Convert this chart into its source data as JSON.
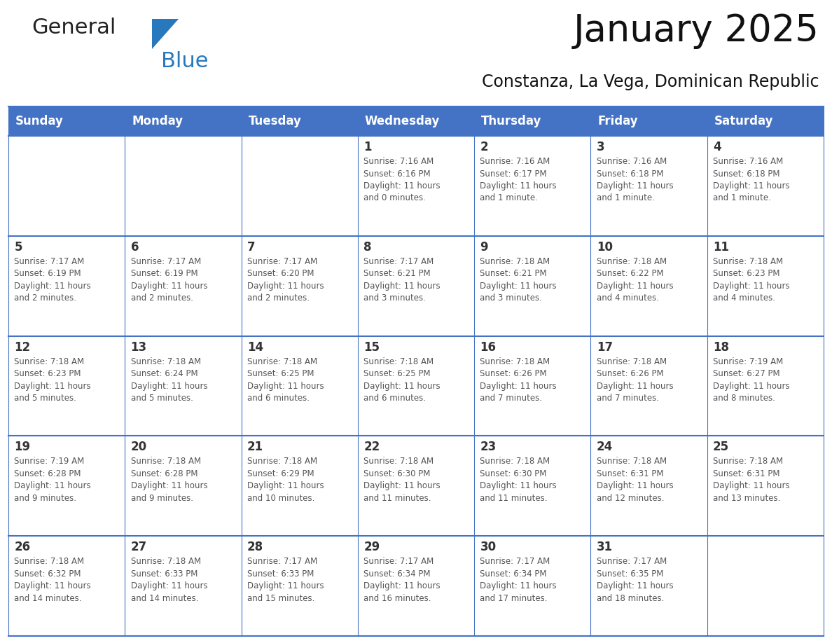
{
  "title": "January 2025",
  "subtitle": "Constanza, La Vega, Dominican Republic",
  "days_of_week": [
    "Sunday",
    "Monday",
    "Tuesday",
    "Wednesday",
    "Thursday",
    "Friday",
    "Saturday"
  ],
  "header_bg": "#4472C4",
  "header_text": "#FFFFFF",
  "cell_bg": "#FFFFFF",
  "border_color": "#4472C4",
  "day_number_color": "#333333",
  "text_color": "#555555",
  "title_color": "#111111",
  "subtitle_color": "#111111",
  "logo_general_color": "#222222",
  "logo_blue_color": "#2878BE",
  "background_color": "#FFFFFF",
  "calendar_data": [
    [
      {
        "day": null,
        "info": ""
      },
      {
        "day": null,
        "info": ""
      },
      {
        "day": null,
        "info": ""
      },
      {
        "day": 1,
        "info": "Sunrise: 7:16 AM\nSunset: 6:16 PM\nDaylight: 11 hours\nand 0 minutes."
      },
      {
        "day": 2,
        "info": "Sunrise: 7:16 AM\nSunset: 6:17 PM\nDaylight: 11 hours\nand 1 minute."
      },
      {
        "day": 3,
        "info": "Sunrise: 7:16 AM\nSunset: 6:18 PM\nDaylight: 11 hours\nand 1 minute."
      },
      {
        "day": 4,
        "info": "Sunrise: 7:16 AM\nSunset: 6:18 PM\nDaylight: 11 hours\nand 1 minute."
      }
    ],
    [
      {
        "day": 5,
        "info": "Sunrise: 7:17 AM\nSunset: 6:19 PM\nDaylight: 11 hours\nand 2 minutes."
      },
      {
        "day": 6,
        "info": "Sunrise: 7:17 AM\nSunset: 6:19 PM\nDaylight: 11 hours\nand 2 minutes."
      },
      {
        "day": 7,
        "info": "Sunrise: 7:17 AM\nSunset: 6:20 PM\nDaylight: 11 hours\nand 2 minutes."
      },
      {
        "day": 8,
        "info": "Sunrise: 7:17 AM\nSunset: 6:21 PM\nDaylight: 11 hours\nand 3 minutes."
      },
      {
        "day": 9,
        "info": "Sunrise: 7:18 AM\nSunset: 6:21 PM\nDaylight: 11 hours\nand 3 minutes."
      },
      {
        "day": 10,
        "info": "Sunrise: 7:18 AM\nSunset: 6:22 PM\nDaylight: 11 hours\nand 4 minutes."
      },
      {
        "day": 11,
        "info": "Sunrise: 7:18 AM\nSunset: 6:23 PM\nDaylight: 11 hours\nand 4 minutes."
      }
    ],
    [
      {
        "day": 12,
        "info": "Sunrise: 7:18 AM\nSunset: 6:23 PM\nDaylight: 11 hours\nand 5 minutes."
      },
      {
        "day": 13,
        "info": "Sunrise: 7:18 AM\nSunset: 6:24 PM\nDaylight: 11 hours\nand 5 minutes."
      },
      {
        "day": 14,
        "info": "Sunrise: 7:18 AM\nSunset: 6:25 PM\nDaylight: 11 hours\nand 6 minutes."
      },
      {
        "day": 15,
        "info": "Sunrise: 7:18 AM\nSunset: 6:25 PM\nDaylight: 11 hours\nand 6 minutes."
      },
      {
        "day": 16,
        "info": "Sunrise: 7:18 AM\nSunset: 6:26 PM\nDaylight: 11 hours\nand 7 minutes."
      },
      {
        "day": 17,
        "info": "Sunrise: 7:18 AM\nSunset: 6:26 PM\nDaylight: 11 hours\nand 7 minutes."
      },
      {
        "day": 18,
        "info": "Sunrise: 7:19 AM\nSunset: 6:27 PM\nDaylight: 11 hours\nand 8 minutes."
      }
    ],
    [
      {
        "day": 19,
        "info": "Sunrise: 7:19 AM\nSunset: 6:28 PM\nDaylight: 11 hours\nand 9 minutes."
      },
      {
        "day": 20,
        "info": "Sunrise: 7:18 AM\nSunset: 6:28 PM\nDaylight: 11 hours\nand 9 minutes."
      },
      {
        "day": 21,
        "info": "Sunrise: 7:18 AM\nSunset: 6:29 PM\nDaylight: 11 hours\nand 10 minutes."
      },
      {
        "day": 22,
        "info": "Sunrise: 7:18 AM\nSunset: 6:30 PM\nDaylight: 11 hours\nand 11 minutes."
      },
      {
        "day": 23,
        "info": "Sunrise: 7:18 AM\nSunset: 6:30 PM\nDaylight: 11 hours\nand 11 minutes."
      },
      {
        "day": 24,
        "info": "Sunrise: 7:18 AM\nSunset: 6:31 PM\nDaylight: 11 hours\nand 12 minutes."
      },
      {
        "day": 25,
        "info": "Sunrise: 7:18 AM\nSunset: 6:31 PM\nDaylight: 11 hours\nand 13 minutes."
      }
    ],
    [
      {
        "day": 26,
        "info": "Sunrise: 7:18 AM\nSunset: 6:32 PM\nDaylight: 11 hours\nand 14 minutes."
      },
      {
        "day": 27,
        "info": "Sunrise: 7:18 AM\nSunset: 6:33 PM\nDaylight: 11 hours\nand 14 minutes."
      },
      {
        "day": 28,
        "info": "Sunrise: 7:17 AM\nSunset: 6:33 PM\nDaylight: 11 hours\nand 15 minutes."
      },
      {
        "day": 29,
        "info": "Sunrise: 7:17 AM\nSunset: 6:34 PM\nDaylight: 11 hours\nand 16 minutes."
      },
      {
        "day": 30,
        "info": "Sunrise: 7:17 AM\nSunset: 6:34 PM\nDaylight: 11 hours\nand 17 minutes."
      },
      {
        "day": 31,
        "info": "Sunrise: 7:17 AM\nSunset: 6:35 PM\nDaylight: 11 hours\nand 18 minutes."
      },
      {
        "day": null,
        "info": ""
      }
    ]
  ],
  "logo_general_fontsize": 22,
  "logo_blue_fontsize": 22,
  "title_fontsize": 38,
  "subtitle_fontsize": 17,
  "header_fontsize": 12,
  "day_num_fontsize": 12,
  "info_fontsize": 8.5
}
